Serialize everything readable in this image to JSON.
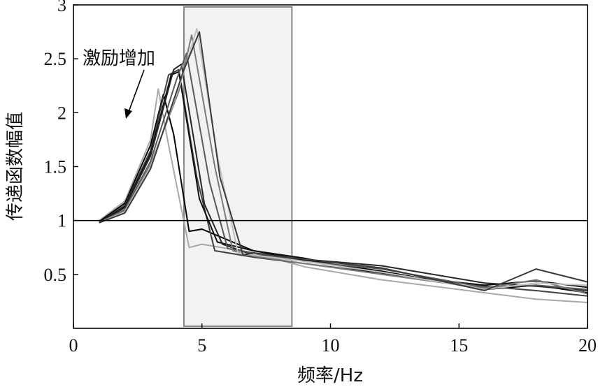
{
  "chart_data": {
    "type": "line",
    "title": "",
    "xlabel": "频率/Hz",
    "ylabel": "传递函数幅值",
    "xlim": [
      0,
      20
    ],
    "ylim": [
      0,
      3
    ],
    "x_ticks": [
      "0",
      "5",
      "10",
      "15",
      "20"
    ],
    "y_ticks": [
      "0.5",
      "1",
      "1.5",
      "2",
      "2.5",
      "3"
    ],
    "reference_line": {
      "y": 1
    },
    "highlight_band": {
      "x": [
        4.3,
        8.5
      ],
      "fill": "#f2f2f2",
      "stroke": "#888888"
    },
    "annotation": {
      "text": "激励增加"
    },
    "series": [
      {
        "color": "#a8a8a8",
        "x": [
          1,
          2,
          3,
          3.3,
          3.7,
          4.5,
          5,
          7,
          9,
          12,
          16,
          18,
          20
        ],
        "y": [
          1.0,
          1.18,
          1.75,
          2.22,
          1.7,
          0.75,
          0.78,
          0.7,
          0.57,
          0.45,
          0.33,
          0.27,
          0.24
        ]
      },
      {
        "color": "#000000",
        "x": [
          1,
          2,
          3,
          3.5,
          3.9,
          4.5,
          5,
          7,
          9,
          12,
          16,
          18,
          20
        ],
        "y": [
          0.99,
          1.16,
          1.7,
          2.17,
          1.8,
          0.9,
          0.92,
          0.72,
          0.63,
          0.53,
          0.36,
          0.4,
          0.33
        ]
      },
      {
        "color": "#404040",
        "x": [
          1,
          2,
          3,
          3.7,
          4.1,
          4.8,
          5.5,
          7,
          9,
          12,
          16,
          18,
          20
        ],
        "y": [
          0.98,
          1.14,
          1.65,
          2.35,
          2.4,
          1.4,
          0.72,
          0.66,
          0.6,
          0.51,
          0.39,
          0.35,
          0.3
        ]
      },
      {
        "color": "#101010",
        "x": [
          1,
          2,
          3,
          3.8,
          4.1,
          4.9,
          5.6,
          7,
          9,
          12,
          16,
          18,
          20
        ],
        "y": [
          0.98,
          1.13,
          1.62,
          2.35,
          2.38,
          1.2,
          0.8,
          0.72,
          0.65,
          0.5,
          0.4,
          0.44,
          0.38
        ]
      },
      {
        "color": "#262626",
        "x": [
          1,
          2,
          3,
          3.9,
          4.2,
          5.1,
          5.8,
          7,
          9,
          12,
          16,
          18,
          20
        ],
        "y": [
          0.98,
          1.12,
          1.6,
          2.4,
          2.45,
          1.15,
          0.78,
          0.68,
          0.64,
          0.58,
          0.42,
          0.39,
          0.35
        ]
      },
      {
        "color": "#595959",
        "x": [
          1,
          2,
          3,
          4.0,
          4.4,
          5.3,
          6.0,
          7,
          9,
          12,
          16,
          18,
          20
        ],
        "y": [
          0.98,
          1.1,
          1.55,
          2.3,
          2.55,
          1.35,
          0.74,
          0.7,
          0.62,
          0.55,
          0.38,
          0.4,
          0.36
        ]
      },
      {
        "color": "#7a7a7a",
        "x": [
          1,
          2,
          3,
          4.1,
          4.6,
          5.5,
          6.2,
          7,
          9,
          12,
          16,
          18,
          20
        ],
        "y": [
          0.98,
          1.09,
          1.52,
          2.2,
          2.72,
          1.5,
          0.72,
          0.67,
          0.6,
          0.5,
          0.37,
          0.45,
          0.32
        ]
      },
      {
        "color": "#c0c0c0",
        "x": [
          1,
          2,
          3,
          4.2,
          4.8,
          5.6,
          6.4,
          7,
          9,
          12,
          16,
          18,
          20
        ],
        "y": [
          0.98,
          1.08,
          1.5,
          2.3,
          2.78,
          1.6,
          0.7,
          0.68,
          0.62,
          0.52,
          0.36,
          0.42,
          0.4
        ]
      },
      {
        "color": "#3a3a3a",
        "x": [
          1,
          2,
          3,
          4.3,
          4.9,
          5.7,
          6.6,
          7,
          9,
          12,
          16,
          18,
          20
        ],
        "y": [
          0.98,
          1.07,
          1.48,
          2.4,
          2.75,
          1.4,
          0.68,
          0.7,
          0.64,
          0.56,
          0.35,
          0.55,
          0.43
        ]
      }
    ]
  }
}
